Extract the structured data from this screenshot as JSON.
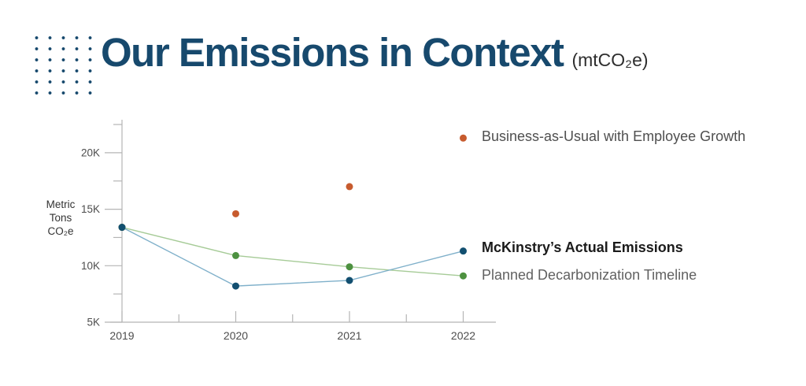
{
  "header": {
    "title": "Our Emissions in Context",
    "subtitle": "(mtCO₂e)"
  },
  "y_axis": {
    "unit_label_lines": [
      "Metric",
      "Tons",
      "CO₂e"
    ]
  },
  "chart_data": {
    "type": "line",
    "title": "Our Emissions in Context (mtCO₂e)",
    "xlabel": "",
    "ylabel": "Metric Tons CO₂e",
    "x": [
      "2019",
      "2020",
      "2021",
      "2022"
    ],
    "ylim": [
      5000,
      22500
    ],
    "grid": false,
    "legend_position": "right-of-last-point",
    "yticks_major": {
      "values": [
        5000,
        10000,
        15000,
        20000
      ],
      "labels": [
        "5K",
        "10K",
        "15K",
        "20K"
      ]
    },
    "yticks_minor": [
      7500,
      12500,
      17500,
      22500
    ],
    "series": [
      {
        "name": "Business-as-Usual with Employee Growth",
        "values": [
          13400,
          14600,
          17000,
          21300
        ],
        "line_color": "#e0８a66",
        "dot_color": "#c75b2e"
      },
      {
        "name": "Planned Decarbonization Timeline",
        "values": [
          13400,
          10900,
          9900,
          9100
        ],
        "line_color": "#a6cb97",
        "dot_color": "#4d9140"
      },
      {
        "name": "McKinstry’s Actual Emissions",
        "values": [
          13400,
          8200,
          8700,
          11300
        ],
        "line_color": "#7fb0ca",
        "dot_color": "#124f70"
      }
    ],
    "colors": {
      "axis": "#b5b5b5",
      "tick_text": "#4d4d4d",
      "title_navy": "#17496d"
    }
  }
}
